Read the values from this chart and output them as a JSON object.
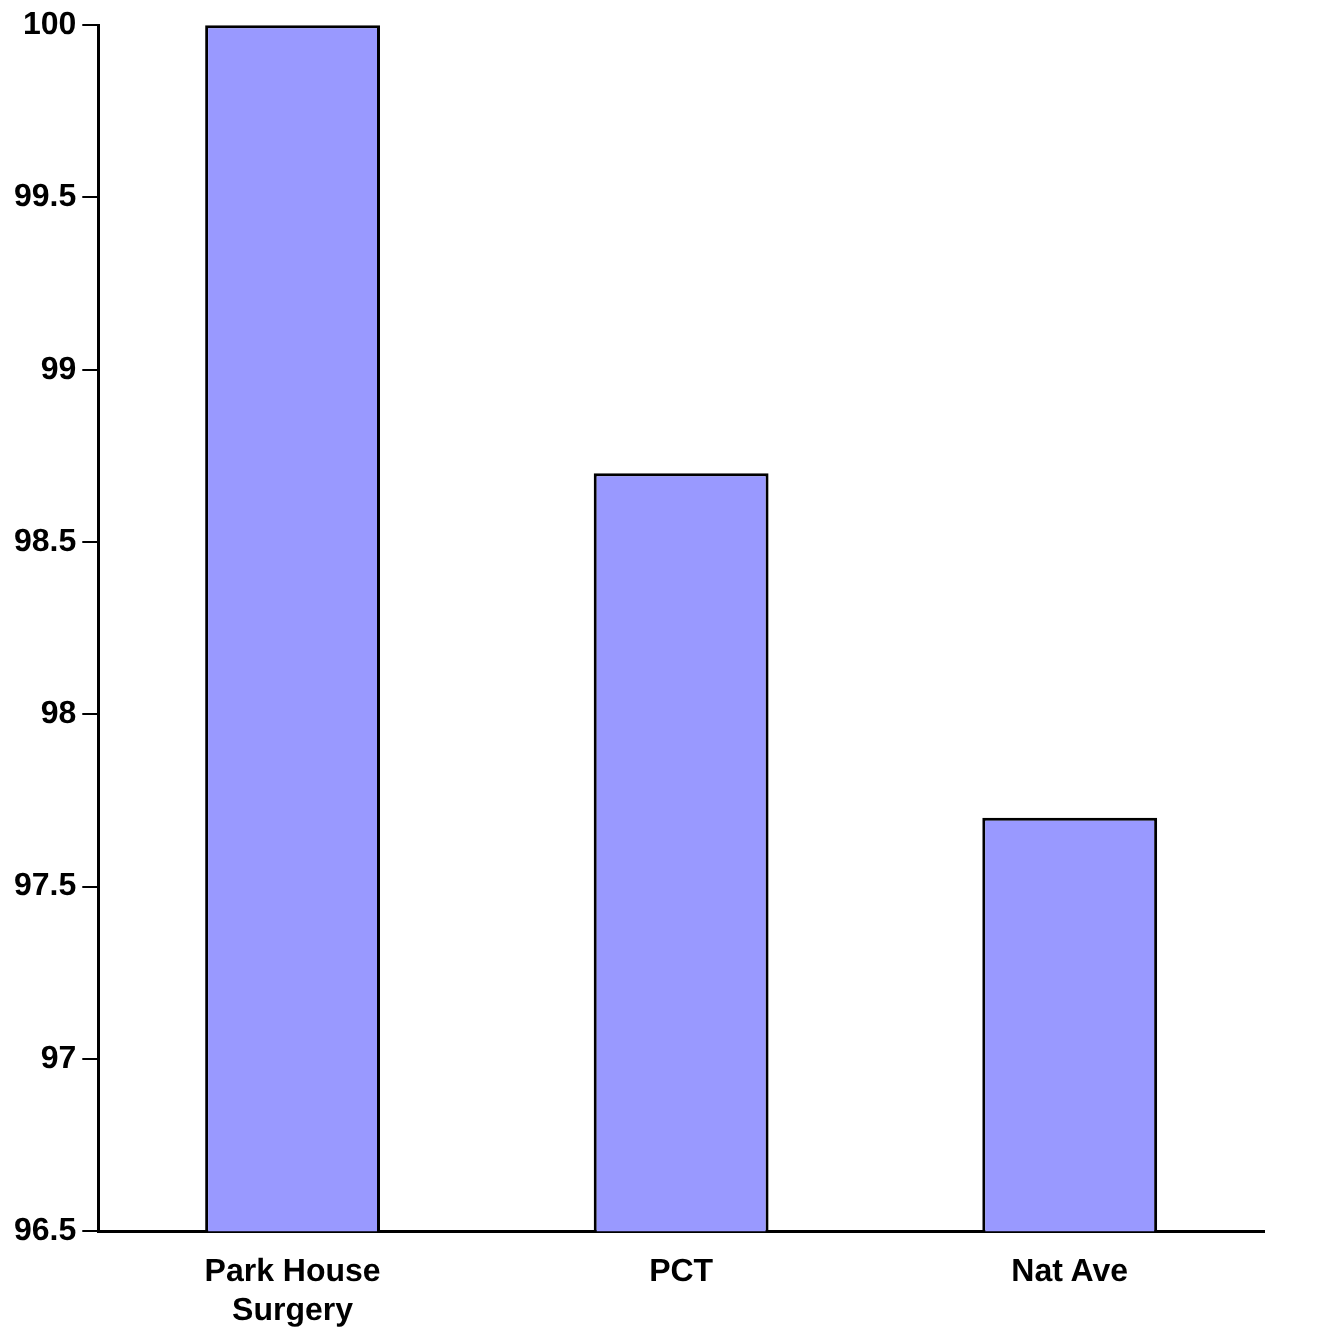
{
  "chart_data": {
    "type": "bar",
    "categories": [
      "Park House Surgery",
      "PCT",
      "Nat Ave"
    ],
    "values": [
      100,
      98.7,
      97.7
    ],
    "color": "#9999ff",
    "ylim": [
      96.5,
      100
    ],
    "yticks": [
      96.5,
      97,
      97.5,
      98,
      98.5,
      99,
      99.5,
      100
    ],
    "grid": false,
    "legend": false
  }
}
